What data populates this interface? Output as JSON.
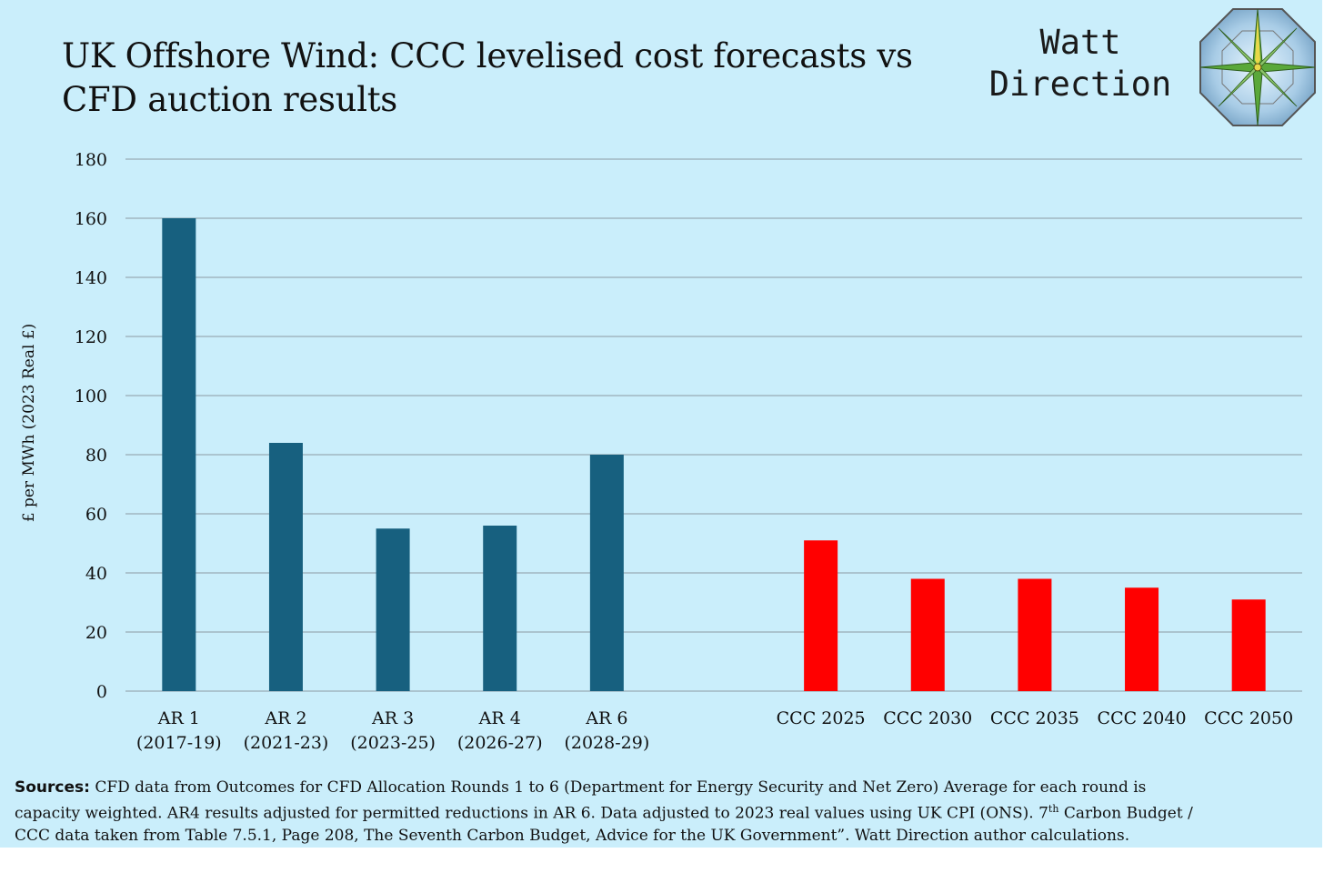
{
  "title": "UK Offshore Wind: CCC levelised cost forecasts vs CFD auction results",
  "brand": {
    "line1": "Watt",
    "line2": "Direction",
    "logo_icon": "compass-rose-icon"
  },
  "chart_data": {
    "type": "bar",
    "title": "UK Offshore Wind: CCC levelised cost forecasts vs CFD auction results",
    "ylabel": "£ per MWh (2023 Real £)",
    "xlabel": "",
    "ylim": [
      0,
      180
    ],
    "yticks": [
      "0",
      "20",
      "40",
      "60",
      "80",
      "100",
      "120",
      "140",
      "160",
      "180"
    ],
    "grid": true,
    "categories": [
      [
        "AR 1",
        "(2017-19)"
      ],
      [
        "AR 2",
        "(2021-23)"
      ],
      [
        "AR 3",
        "(2023-25)"
      ],
      [
        "AR 4",
        "(2026-27)"
      ],
      [
        "AR 6",
        "(2028-29)"
      ],
      [
        ""
      ],
      [
        "CCC 2025"
      ],
      [
        "CCC 2030"
      ],
      [
        "CCC 2035"
      ],
      [
        "CCC 2040"
      ],
      [
        "CCC 2050"
      ]
    ],
    "values": [
      160,
      84,
      55,
      56,
      80,
      null,
      51,
      38,
      38,
      35,
      31
    ],
    "colors": [
      "#17607f",
      "#17607f",
      "#17607f",
      "#17607f",
      "#17607f",
      null,
      "#ff0000",
      "#ff0000",
      "#ff0000",
      "#ff0000",
      "#ff0000"
    ]
  },
  "sources": {
    "label": "Sources:",
    "line1": " CFD data from Outcomes for CFD Allocation Rounds 1 to 6 (Department for Energy Security and Net Zero) Average for each round is",
    "line2a": "capacity weighted. AR4 results adjusted for permitted reductions in AR 6. Data adjusted to 2023 real values using UK CPI (ONS).  7",
    "line2sup": "th",
    "line2b": " Carbon Budget /",
    "line3": "CCC data taken from Table 7.5.1, Page 208, The Seventh Carbon Budget, Advice for the UK Government”. Watt Direction author calculations."
  }
}
